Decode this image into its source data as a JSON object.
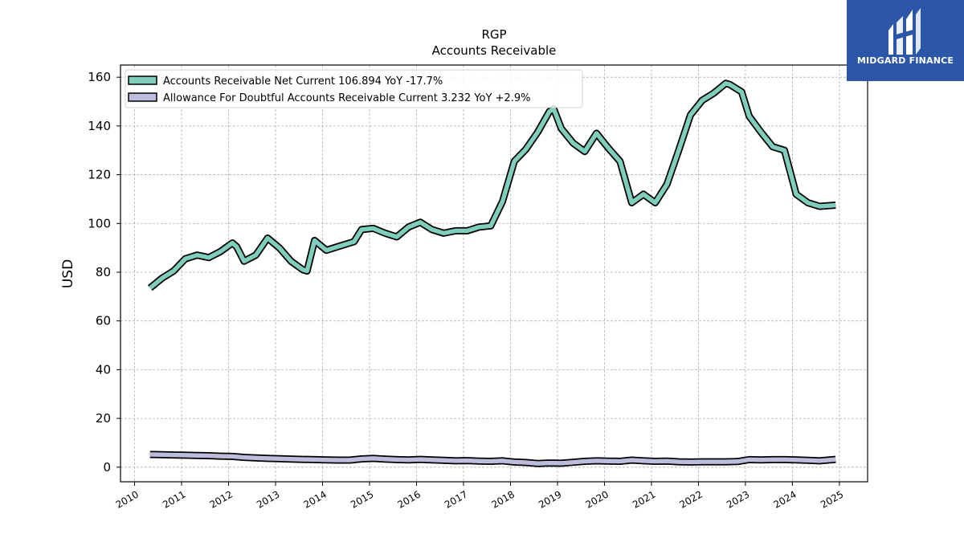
{
  "brand": {
    "name": "MIDGARD FINANCE",
    "logo_icon": "midgard-m-logo-icon",
    "background": "#2c56a8"
  },
  "chart_data": {
    "type": "area",
    "title": "RGP",
    "subtitle": "Accounts Receivable",
    "xlabel": "",
    "ylabel": "USD",
    "xlim": [
      2009.7,
      2025.6
    ],
    "ylim": [
      -6,
      165
    ],
    "x_ticks": [
      "2010",
      "2011",
      "2012",
      "2013",
      "2014",
      "2015",
      "2016",
      "2017",
      "2018",
      "2019",
      "2020",
      "2021",
      "2022",
      "2023",
      "2024",
      "2025"
    ],
    "y_ticks": [
      0,
      20,
      40,
      60,
      80,
      100,
      120,
      140,
      160
    ],
    "grid": true,
    "legend_position": "top-left",
    "series": [
      {
        "name": "Accounts Receivable Net Current",
        "legend_label": "Accounts Receivable Net Current  106.894 YoY -17.7%",
        "color": "#7fcdbb",
        "x": [
          2010.33,
          2010.58,
          2010.83,
          2011.08,
          2011.33,
          2011.58,
          2011.83,
          2012.08,
          2012.17,
          2012.33,
          2012.58,
          2012.83,
          2013.08,
          2013.33,
          2013.58,
          2013.67,
          2013.83,
          2014.08,
          2014.33,
          2014.67,
          2014.83,
          2015.08,
          2015.33,
          2015.58,
          2015.83,
          2016.08,
          2016.33,
          2016.58,
          2016.83,
          2017.08,
          2017.33,
          2017.58,
          2017.83,
          2018.08,
          2018.33,
          2018.58,
          2018.83,
          2018.92,
          2019.08,
          2019.33,
          2019.58,
          2019.83,
          2020.08,
          2020.33,
          2020.58,
          2020.83,
          2021.08,
          2021.33,
          2021.58,
          2021.83,
          2022.08,
          2022.33,
          2022.58,
          2022.67,
          2022.92,
          2023.08,
          2023.33,
          2023.58,
          2023.83,
          2024.08,
          2024.33,
          2024.58,
          2024.92
        ],
        "values": [
          73.5,
          77.5,
          80.5,
          85.5,
          87,
          86,
          88.5,
          92,
          90.5,
          84.5,
          87,
          94,
          90,
          84.5,
          81,
          80.5,
          93,
          89,
          90.5,
          92.5,
          97.5,
          98,
          96,
          94.5,
          98.5,
          100.5,
          97.5,
          96,
          97,
          97,
          98.5,
          99,
          109,
          125.5,
          130.5,
          137.5,
          146,
          147,
          139,
          133,
          129.5,
          137,
          131,
          125.5,
          108.5,
          112,
          108.5,
          116,
          130,
          144.5,
          150.5,
          153.5,
          157.5,
          157,
          154,
          144,
          137.5,
          131.5,
          130,
          112,
          108.5,
          107,
          107.5
        ]
      },
      {
        "name": "Allowance For Doubtful Accounts Receivable Current",
        "legend_label": "Allowance For Doubtful Accounts Receivable Current  3.232 YoY +2.9%",
        "color": "#bcbddc",
        "x": [
          2010.33,
          2010.58,
          2010.83,
          2011.08,
          2011.33,
          2011.58,
          2011.83,
          2012.08,
          2012.33,
          2012.58,
          2012.83,
          2013.08,
          2013.33,
          2013.58,
          2013.83,
          2014.08,
          2014.33,
          2014.58,
          2014.83,
          2015.08,
          2015.33,
          2015.58,
          2015.83,
          2016.08,
          2016.33,
          2016.58,
          2016.83,
          2017.08,
          2017.33,
          2017.58,
          2017.83,
          2018.08,
          2018.33,
          2018.58,
          2018.83,
          2019.08,
          2019.33,
          2019.58,
          2019.83,
          2020.08,
          2020.33,
          2020.58,
          2020.83,
          2021.08,
          2021.33,
          2021.58,
          2021.83,
          2022.08,
          2022.33,
          2022.58,
          2022.83,
          2023.08,
          2023.33,
          2023.58,
          2023.83,
          2024.08,
          2024.33,
          2024.58,
          2024.92
        ],
        "values": [
          5.2,
          5.1,
          5,
          4.9,
          4.8,
          4.7,
          4.5,
          4.4,
          4,
          3.8,
          3.6,
          3.5,
          3.3,
          3.2,
          3.1,
          3,
          2.9,
          2.9,
          3.4,
          3.6,
          3.3,
          3.1,
          3,
          3.2,
          3,
          2.8,
          2.6,
          2.7,
          2.5,
          2.4,
          2.6,
          2.1,
          1.9,
          1.5,
          1.7,
          1.6,
          2,
          2.4,
          2.6,
          2.5,
          2.4,
          2.9,
          2.6,
          2.4,
          2.5,
          2.2,
          2.1,
          2.2,
          2.2,
          2.2,
          2.3,
          3.1,
          3,
          3.1,
          3.1,
          3,
          2.8,
          2.6,
          3.2
        ]
      }
    ]
  }
}
